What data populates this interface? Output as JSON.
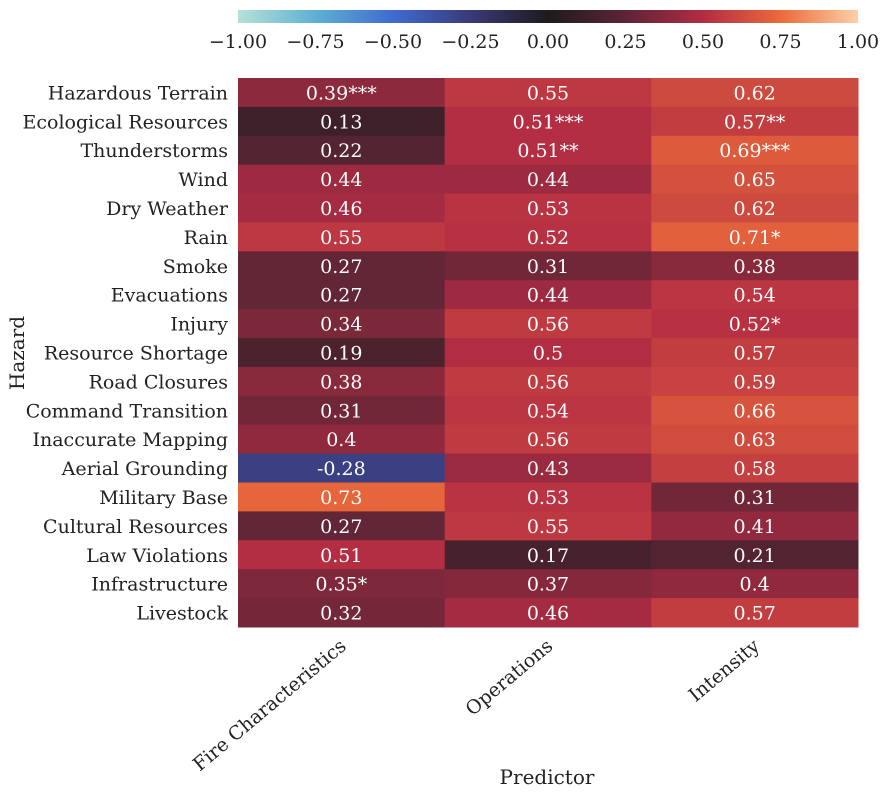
{
  "chart_data": {
    "type": "heatmap",
    "xlabel": "Predictor",
    "ylabel": "Hazard",
    "columns": [
      "Fire Characteristics",
      "Operations",
      "Intensity"
    ],
    "rows": [
      "Hazardous Terrain",
      "Ecological Resources",
      "Thunderstorms",
      "Wind",
      "Dry Weather",
      "Rain",
      "Smoke",
      "Evacuations",
      "Injury",
      "Resource Shortage",
      "Road Closures",
      "Command Transition",
      "Inaccurate Mapping",
      "Aerial Grounding",
      "Military Base",
      "Cultural Resources",
      "Law Violations",
      "Infrastructure",
      "Livestock"
    ],
    "values": [
      [
        0.39,
        0.55,
        0.62
      ],
      [
        0.13,
        0.51,
        0.57
      ],
      [
        0.22,
        0.51,
        0.69
      ],
      [
        0.44,
        0.44,
        0.65
      ],
      [
        0.46,
        0.53,
        0.62
      ],
      [
        0.55,
        0.52,
        0.71
      ],
      [
        0.27,
        0.31,
        0.38
      ],
      [
        0.27,
        0.44,
        0.54
      ],
      [
        0.34,
        0.56,
        0.52
      ],
      [
        0.19,
        0.5,
        0.57
      ],
      [
        0.38,
        0.56,
        0.59
      ],
      [
        0.31,
        0.54,
        0.66
      ],
      [
        0.4,
        0.56,
        0.63
      ],
      [
        -0.28,
        0.43,
        0.58
      ],
      [
        0.73,
        0.53,
        0.31
      ],
      [
        0.27,
        0.55,
        0.41
      ],
      [
        0.51,
        0.17,
        0.21
      ],
      [
        0.35,
        0.37,
        0.4
      ],
      [
        0.32,
        0.46,
        0.57
      ]
    ],
    "annotations": [
      [
        "0.39***",
        "0.55",
        "0.62"
      ],
      [
        "0.13",
        "0.51***",
        "0.57**"
      ],
      [
        "0.22",
        "0.51**",
        "0.69***"
      ],
      [
        "0.44",
        "0.44",
        "0.65"
      ],
      [
        "0.46",
        "0.53",
        "0.62"
      ],
      [
        "0.55",
        "0.52",
        "0.71*"
      ],
      [
        "0.27",
        "0.31",
        "0.38"
      ],
      [
        "0.27",
        "0.44",
        "0.54"
      ],
      [
        "0.34",
        "0.56",
        "0.52*"
      ],
      [
        "0.19",
        "0.5",
        "0.57"
      ],
      [
        "0.38",
        "0.56",
        "0.59"
      ],
      [
        "0.31",
        "0.54",
        "0.66"
      ],
      [
        "0.4",
        "0.56",
        "0.63"
      ],
      [
        "-0.28",
        "0.43",
        "0.58"
      ],
      [
        "0.73",
        "0.53",
        "0.31"
      ],
      [
        "0.27",
        "0.55",
        "0.41"
      ],
      [
        "0.51",
        "0.17",
        "0.21"
      ],
      [
        "0.35*",
        "0.37",
        "0.4"
      ],
      [
        "0.32",
        "0.46",
        "0.57"
      ]
    ],
    "colorbar": {
      "range": [
        -1.0,
        1.0
      ],
      "ticks": [
        "−1.00",
        "−0.75",
        "−0.50",
        "−0.25",
        "0.00",
        "0.25",
        "0.50",
        "0.75",
        "1.00"
      ],
      "tick_values": [
        -1.0,
        -0.75,
        -0.5,
        -0.25,
        0.0,
        0.25,
        0.5,
        0.75,
        1.0
      ],
      "position": "top",
      "colormap_stops": [
        {
          "v": -1.0,
          "color": "#b5e2d8"
        },
        {
          "v": -0.75,
          "color": "#5fb0d3"
        },
        {
          "v": -0.5,
          "color": "#3f6bd1"
        },
        {
          "v": -0.25,
          "color": "#3a3a78"
        },
        {
          "v": 0.0,
          "color": "#1e1a1e"
        },
        {
          "v": 0.25,
          "color": "#5c2535"
        },
        {
          "v": 0.5,
          "color": "#b22c43"
        },
        {
          "v": 0.75,
          "color": "#eb6a3a"
        },
        {
          "v": 1.0,
          "color": "#fdd0a8"
        }
      ]
    }
  }
}
